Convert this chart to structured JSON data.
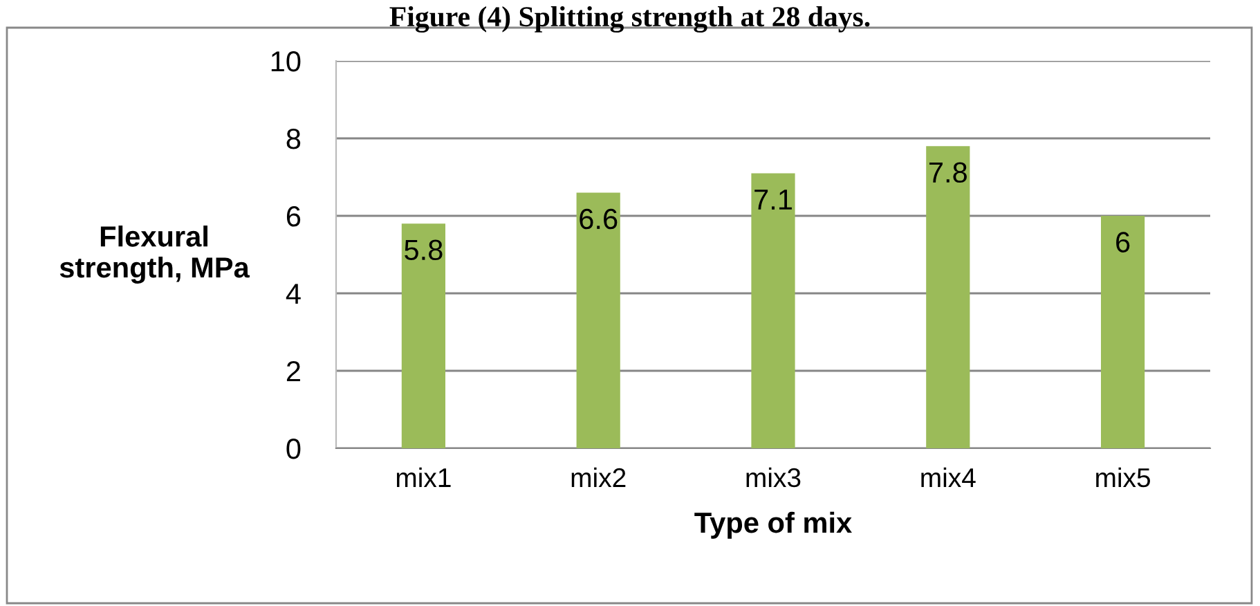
{
  "chart_data": {
    "type": "bar",
    "title": "Figure (4) Splitting strength at 28 days.",
    "xlabel": "Type of mix",
    "ylabel": "Flexural\nstrength, MPa",
    "categories": [
      "mix1",
      "mix2",
      "mix3",
      "mix4",
      "mix5"
    ],
    "values": [
      5.8,
      6.6,
      7.1,
      7.8,
      6
    ],
    "color": "#9bbb59",
    "ylim": [
      0,
      10
    ],
    "yticks": [
      0,
      2,
      4,
      6,
      8,
      10
    ],
    "grid": "y",
    "data_labels": true
  }
}
